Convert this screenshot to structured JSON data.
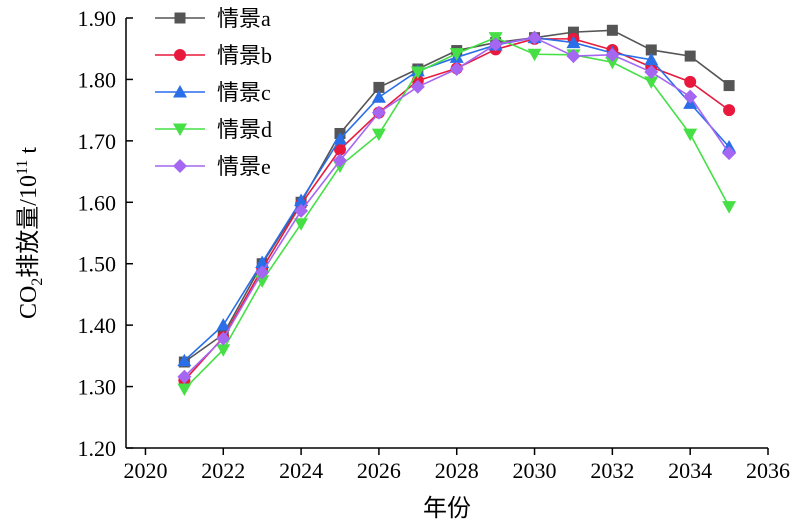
{
  "chart_data": {
    "type": "line",
    "title": "",
    "xlabel": "年份",
    "ylabel": {
      "main": "CO",
      "sub": "2",
      "mid": "排放量/10",
      "sup": "11",
      "end": " t"
    },
    "xlim": [
      2019.5,
      2036
    ],
    "ylim": [
      1.2,
      1.9
    ],
    "xticks": [
      2020,
      2022,
      2024,
      2026,
      2028,
      2030,
      2032,
      2034,
      2036
    ],
    "yticks": [
      1.2,
      1.3,
      1.4,
      1.5,
      1.6,
      1.7,
      1.8,
      1.9
    ],
    "ytick_labels": [
      "1.20",
      "1.30",
      "1.40",
      "1.50",
      "1.60",
      "1.70",
      "1.80",
      "1.90"
    ],
    "grid": false,
    "legend_position": "top-left",
    "x": [
      2021,
      2022,
      2023,
      2024,
      2025,
      2026,
      2027,
      2028,
      2029,
      2030,
      2031,
      2032,
      2033,
      2034,
      2035
    ],
    "series": [
      {
        "name": "情景a",
        "color": "#555555",
        "marker": "square",
        "values": [
          1.34,
          1.385,
          1.5,
          1.6,
          1.712,
          1.787,
          1.817,
          1.847,
          1.86,
          1.868,
          1.877,
          1.88,
          1.848,
          1.838,
          1.79
        ]
      },
      {
        "name": "情景b",
        "color": "#e8193c",
        "marker": "circle",
        "values": [
          1.31,
          1.38,
          1.492,
          1.597,
          1.686,
          1.746,
          1.798,
          1.818,
          1.849,
          1.866,
          1.866,
          1.848,
          1.82,
          1.796,
          1.75
        ]
      },
      {
        "name": "情景c",
        "color": "#2a6ee8",
        "marker": "triangle-up",
        "values": [
          1.342,
          1.4,
          1.502,
          1.603,
          1.703,
          1.771,
          1.814,
          1.836,
          1.856,
          1.868,
          1.86,
          1.843,
          1.832,
          1.761,
          1.69
        ]
      },
      {
        "name": "情景d",
        "color": "#46e046",
        "marker": "triangle-down",
        "values": [
          1.296,
          1.36,
          1.472,
          1.565,
          1.659,
          1.711,
          1.812,
          1.842,
          1.868,
          1.841,
          1.84,
          1.828,
          1.796,
          1.711,
          1.593
        ]
      },
      {
        "name": "情景e",
        "color": "#a566f2",
        "marker": "diamond",
        "values": [
          1.316,
          1.378,
          1.486,
          1.586,
          1.668,
          1.746,
          1.788,
          1.817,
          1.857,
          1.868,
          1.838,
          1.84,
          1.812,
          1.772,
          1.68
        ]
      }
    ]
  }
}
